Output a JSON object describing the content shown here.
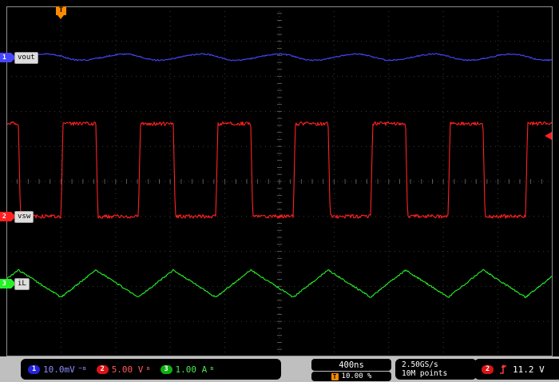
{
  "scope": {
    "channels": [
      {
        "num": "1",
        "label": "vout",
        "color": "#4646ff",
        "badge_color": "#2424dd",
        "readout_color": "#8c8cff",
        "scale": "10.0mV",
        "suffix": "~ʙ"
      },
      {
        "num": "2",
        "label": "vsw",
        "color": "#ff2121",
        "badge_color": "#dd1414",
        "readout_color": "#ff5a5a",
        "scale": "5.00 V",
        "suffix": "ʙ"
      },
      {
        "num": "3",
        "label": "iL",
        "color": "#27f027",
        "badge_color": "#0fae0f",
        "readout_color": "#4ce84c",
        "scale": "1.00 A",
        "suffix": "ʙ"
      }
    ],
    "trigger_position_marker": "T",
    "statusbar": {
      "timebase": "400ns",
      "trigger_pos_label": "T",
      "trigger_pos": "10.00 %",
      "sample_rate": "2.50GS/s",
      "record_length": "10M points",
      "trigger_source": "2",
      "trigger_level": "11.2 V"
    }
  },
  "chart_data": {
    "type": "line",
    "title": "Oscilloscope capture: switching converter waveforms",
    "x_axis": {
      "units": "ns",
      "time_per_div": 400,
      "divisions": 10,
      "trigger_position_pct": 10.0
    },
    "y_axis": {
      "divisions": 10
    },
    "grid": "dotted graticule, center-axis ticks every 0.2 div",
    "series": [
      {
        "name": "vout",
        "channel": 1,
        "waveform": "ripple",
        "scale_per_div": "10.0 mV",
        "coupling": "AC",
        "period_ns": 567,
        "ripple_pp_div": 0.18,
        "ripple_pp_value": "1.8 mV",
        "center_div_from_top": 1.45
      },
      {
        "name": "vsw",
        "channel": 2,
        "waveform": "square",
        "scale_per_div": "5.00 V",
        "period_ns": 567,
        "duty_pct": 45,
        "high_div_from_top": 3.35,
        "low_div_from_top": 6.0,
        "high_value": "13.2 V",
        "low_value": "0 V"
      },
      {
        "name": "iL",
        "channel": 3,
        "waveform": "triangle",
        "scale_per_div": "1.00 A",
        "period_ns": 567,
        "ripple_pp_div": 0.78,
        "ripple_pp_value": "0.78 A",
        "center_div_from_top": 7.92
      }
    ],
    "trigger": {
      "source_channel": 2,
      "slope": "rising",
      "level": "11.2 V",
      "level_div_from_top": 3.7
    }
  }
}
